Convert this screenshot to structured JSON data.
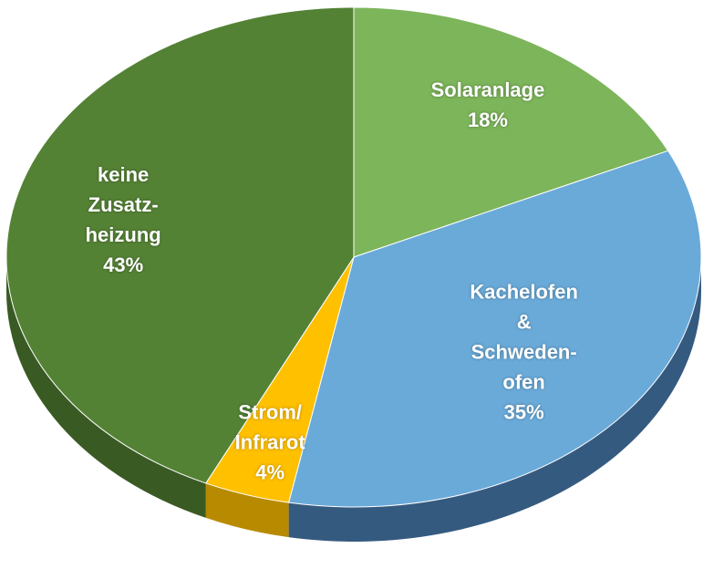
{
  "chart_data": {
    "type": "pie",
    "categories": [
      "Solaranlage",
      "Kachelofen\n&\nSchweden-\nofen",
      "Strom/\nInfrarot",
      "keine\nZusatz-\nheizung"
    ],
    "values": [
      18,
      35,
      4,
      43
    ],
    "value_labels": [
      "18%",
      "35%",
      "4%",
      "43%"
    ],
    "colors": [
      "#7db55a",
      "#6aaad9",
      "#ffc000",
      "#548235"
    ],
    "side_colors": [
      "#5e8a42",
      "#355a80",
      "#b88a00",
      "#3a5a24"
    ]
  }
}
